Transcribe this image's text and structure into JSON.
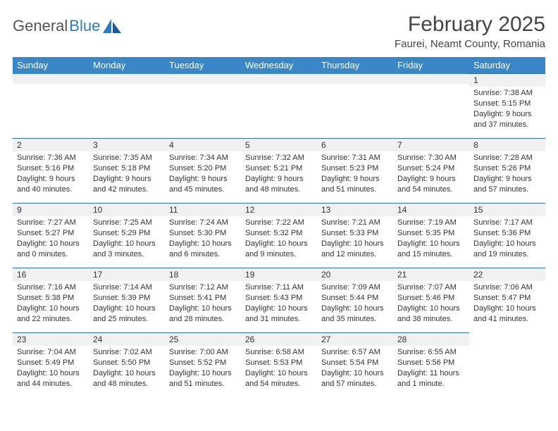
{
  "logo": {
    "text1": "General",
    "text2": "Blue"
  },
  "title": {
    "month": "February 2025",
    "location": "Faurei, Neamt County, Romania"
  },
  "colors": {
    "header_bg": "#3a87c8",
    "header_text": "#ffffff",
    "row_border": "#2f6fa8",
    "daynum_bg": "#f1f1f1",
    "body_text": "#333333",
    "logo_gray": "#555555",
    "logo_blue": "#2f7bbf",
    "page_bg": "#ffffff"
  },
  "fonts": {
    "title_size": 30,
    "location_size": 15,
    "th_size": 13,
    "cell_size": 11
  },
  "days_of_week": [
    "Sunday",
    "Monday",
    "Tuesday",
    "Wednesday",
    "Thursday",
    "Friday",
    "Saturday"
  ],
  "weeks": [
    [
      null,
      null,
      null,
      null,
      null,
      null,
      {
        "n": "1",
        "sunrise": "7:38 AM",
        "sunset": "5:15 PM",
        "daylight": "9 hours and 37 minutes."
      }
    ],
    [
      {
        "n": "2",
        "sunrise": "7:36 AM",
        "sunset": "5:16 PM",
        "daylight": "9 hours and 40 minutes."
      },
      {
        "n": "3",
        "sunrise": "7:35 AM",
        "sunset": "5:18 PM",
        "daylight": "9 hours and 42 minutes."
      },
      {
        "n": "4",
        "sunrise": "7:34 AM",
        "sunset": "5:20 PM",
        "daylight": "9 hours and 45 minutes."
      },
      {
        "n": "5",
        "sunrise": "7:32 AM",
        "sunset": "5:21 PM",
        "daylight": "9 hours and 48 minutes."
      },
      {
        "n": "6",
        "sunrise": "7:31 AM",
        "sunset": "5:23 PM",
        "daylight": "9 hours and 51 minutes."
      },
      {
        "n": "7",
        "sunrise": "7:30 AM",
        "sunset": "5:24 PM",
        "daylight": "9 hours and 54 minutes."
      },
      {
        "n": "8",
        "sunrise": "7:28 AM",
        "sunset": "5:26 PM",
        "daylight": "9 hours and 57 minutes."
      }
    ],
    [
      {
        "n": "9",
        "sunrise": "7:27 AM",
        "sunset": "5:27 PM",
        "daylight": "10 hours and 0 minutes."
      },
      {
        "n": "10",
        "sunrise": "7:25 AM",
        "sunset": "5:29 PM",
        "daylight": "10 hours and 3 minutes."
      },
      {
        "n": "11",
        "sunrise": "7:24 AM",
        "sunset": "5:30 PM",
        "daylight": "10 hours and 6 minutes."
      },
      {
        "n": "12",
        "sunrise": "7:22 AM",
        "sunset": "5:32 PM",
        "daylight": "10 hours and 9 minutes."
      },
      {
        "n": "13",
        "sunrise": "7:21 AM",
        "sunset": "5:33 PM",
        "daylight": "10 hours and 12 minutes."
      },
      {
        "n": "14",
        "sunrise": "7:19 AM",
        "sunset": "5:35 PM",
        "daylight": "10 hours and 15 minutes."
      },
      {
        "n": "15",
        "sunrise": "7:17 AM",
        "sunset": "5:36 PM",
        "daylight": "10 hours and 19 minutes."
      }
    ],
    [
      {
        "n": "16",
        "sunrise": "7:16 AM",
        "sunset": "5:38 PM",
        "daylight": "10 hours and 22 minutes."
      },
      {
        "n": "17",
        "sunrise": "7:14 AM",
        "sunset": "5:39 PM",
        "daylight": "10 hours and 25 minutes."
      },
      {
        "n": "18",
        "sunrise": "7:12 AM",
        "sunset": "5:41 PM",
        "daylight": "10 hours and 28 minutes."
      },
      {
        "n": "19",
        "sunrise": "7:11 AM",
        "sunset": "5:43 PM",
        "daylight": "10 hours and 31 minutes."
      },
      {
        "n": "20",
        "sunrise": "7:09 AM",
        "sunset": "5:44 PM",
        "daylight": "10 hours and 35 minutes."
      },
      {
        "n": "21",
        "sunrise": "7:07 AM",
        "sunset": "5:46 PM",
        "daylight": "10 hours and 38 minutes."
      },
      {
        "n": "22",
        "sunrise": "7:06 AM",
        "sunset": "5:47 PM",
        "daylight": "10 hours and 41 minutes."
      }
    ],
    [
      {
        "n": "23",
        "sunrise": "7:04 AM",
        "sunset": "5:49 PM",
        "daylight": "10 hours and 44 minutes."
      },
      {
        "n": "24",
        "sunrise": "7:02 AM",
        "sunset": "5:50 PM",
        "daylight": "10 hours and 48 minutes."
      },
      {
        "n": "25",
        "sunrise": "7:00 AM",
        "sunset": "5:52 PM",
        "daylight": "10 hours and 51 minutes."
      },
      {
        "n": "26",
        "sunrise": "6:58 AM",
        "sunset": "5:53 PM",
        "daylight": "10 hours and 54 minutes."
      },
      {
        "n": "27",
        "sunrise": "6:57 AM",
        "sunset": "5:54 PM",
        "daylight": "10 hours and 57 minutes."
      },
      {
        "n": "28",
        "sunrise": "6:55 AM",
        "sunset": "5:56 PM",
        "daylight": "11 hours and 1 minute."
      },
      null
    ]
  ],
  "labels": {
    "sunrise": "Sunrise: ",
    "sunset": "Sunset: ",
    "daylight": "Daylight: "
  }
}
